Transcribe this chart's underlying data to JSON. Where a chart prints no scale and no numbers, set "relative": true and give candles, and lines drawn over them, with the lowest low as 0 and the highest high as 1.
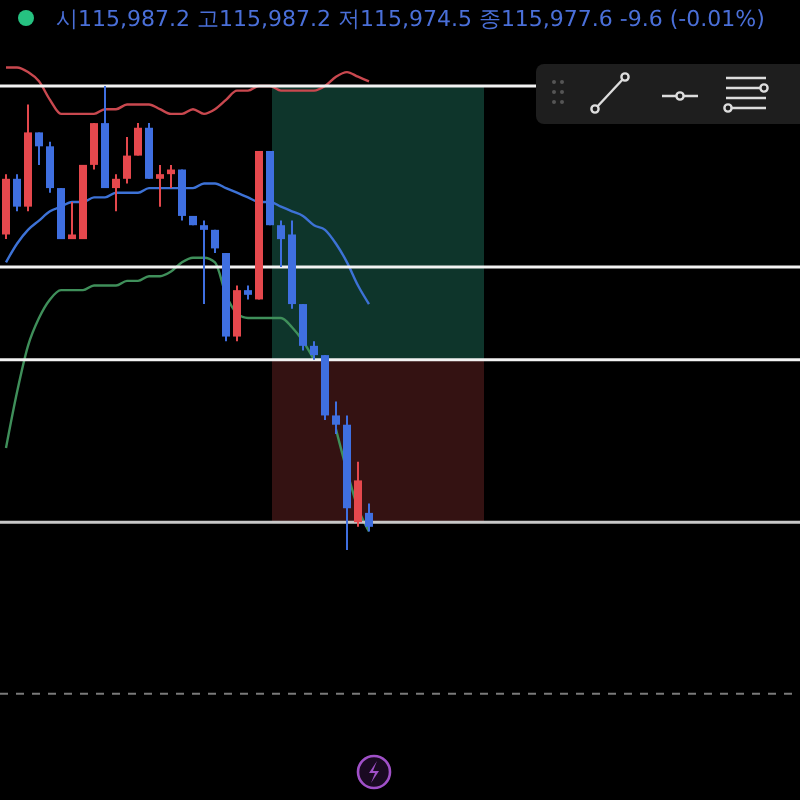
{
  "chart_data": {
    "type": "candlestick",
    "title": "시115,987.2 고115,987.2 저115,974.5 종115,977.6 -9.6 (-0.01%)",
    "categories": [
      null,
      null,
      null,
      null,
      null,
      null,
      null,
      null,
      null,
      null,
      null,
      null,
      null,
      null,
      null,
      null,
      null,
      null,
      null,
      null,
      null,
      null,
      null,
      null,
      null,
      null,
      null,
      null,
      null,
      null,
      null,
      null,
      null,
      null
    ],
    "ohlc": [
      [
        0.68,
        0.81,
        0.67,
        0.8
      ],
      [
        0.8,
        0.81,
        0.73,
        0.74
      ],
      [
        0.74,
        0.96,
        0.73,
        0.9
      ],
      [
        0.9,
        0.9,
        0.83,
        0.87
      ],
      [
        0.87,
        0.88,
        0.77,
        0.78
      ],
      [
        0.78,
        0.78,
        0.67,
        0.67
      ],
      [
        0.67,
        0.75,
        0.67,
        0.68
      ],
      [
        0.67,
        0.83,
        0.67,
        0.83
      ],
      [
        0.83,
        0.92,
        0.82,
        0.92
      ],
      [
        0.92,
        1.0,
        0.78,
        0.78
      ],
      [
        0.78,
        0.81,
        0.73,
        0.8
      ],
      [
        0.8,
        0.89,
        0.79,
        0.85
      ],
      [
        0.85,
        0.92,
        0.85,
        0.91
      ],
      [
        0.91,
        0.92,
        0.8,
        0.8
      ],
      [
        0.8,
        0.83,
        0.74,
        0.81
      ],
      [
        0.81,
        0.83,
        0.78,
        0.82
      ],
      [
        0.82,
        0.82,
        0.71,
        0.72
      ],
      [
        0.72,
        0.72,
        0.7,
        0.7
      ],
      [
        0.7,
        0.71,
        0.53,
        0.69
      ],
      [
        0.69,
        0.69,
        0.64,
        0.65
      ],
      [
        0.64,
        0.64,
        0.45,
        0.46
      ],
      [
        0.46,
        0.57,
        0.45,
        0.56
      ],
      [
        0.56,
        0.57,
        0.54,
        0.55
      ],
      [
        0.54,
        0.86,
        0.54,
        0.86
      ],
      [
        0.86,
        0.86,
        0.7,
        0.7
      ],
      [
        0.7,
        0.71,
        0.61,
        0.67
      ],
      [
        0.68,
        0.71,
        0.52,
        0.53
      ],
      [
        0.53,
        0.53,
        0.43,
        0.44
      ],
      [
        0.44,
        0.45,
        0.41,
        0.42
      ],
      [
        0.42,
        0.42,
        0.28,
        0.29
      ],
      [
        0.29,
        0.32,
        0.25,
        0.27
      ],
      [
        0.27,
        0.29,
        0.0,
        0.09
      ],
      [
        0.06,
        0.19,
        0.05,
        0.15
      ],
      [
        0.08,
        0.1,
        0.04,
        0.05
      ]
    ],
    "colors": [
      "#e5484d",
      "#3f6fe0",
      "#e5484d",
      "#3f6fe0",
      "#3f6fe0",
      "#3f6fe0",
      "#e5484d",
      "#e5484d",
      "#e5484d",
      "#3f6fe0",
      "#e5484d",
      "#e5484d",
      "#e5484d",
      "#3f6fe0",
      "#e5484d",
      "#e5484d",
      "#3f6fe0",
      "#3f6fe0",
      "#3f6fe0",
      "#3f6fe0",
      "#3f6fe0",
      "#e5484d",
      "#3f6fe0",
      "#e5484d",
      "#3f6fe0",
      "#3f6fe0",
      "#3f6fe0",
      "#3f6fe0",
      "#3f6fe0",
      "#3f6fe0",
      "#3f6fe0",
      "#3f6fe0",
      "#e5484d",
      "#3f6fe0"
    ],
    "series": [
      {
        "type": "line",
        "color": "#c9484f",
        "values": [
          1.04,
          1.04,
          1.03,
          1.01,
          0.97,
          0.94,
          0.94,
          0.94,
          0.94,
          0.95,
          0.95,
          0.96,
          0.96,
          0.96,
          0.95,
          0.94,
          0.94,
          0.95,
          0.94,
          0.95,
          0.97,
          0.99,
          0.99,
          1.0,
          1.0,
          0.99,
          0.99,
          0.99,
          0.99,
          1.0,
          1.02,
          1.03,
          1.02,
          1.01
        ]
      },
      {
        "type": "line",
        "color": "#3d72d6",
        "values": [
          0.62,
          0.66,
          0.69,
          0.71,
          0.73,
          0.74,
          0.75,
          0.75,
          0.76,
          0.76,
          0.77,
          0.77,
          0.77,
          0.78,
          0.78,
          0.78,
          0.78,
          0.78,
          0.79,
          0.79,
          0.78,
          0.77,
          0.76,
          0.75,
          0.75,
          0.74,
          0.73,
          0.72,
          0.7,
          0.69,
          0.66,
          0.62,
          0.57,
          0.53
        ]
      },
      {
        "type": "line",
        "color": "#3f8f5a",
        "values": [
          0.22,
          0.34,
          0.44,
          0.5,
          0.54,
          0.56,
          0.56,
          0.56,
          0.57,
          0.57,
          0.57,
          0.58,
          0.58,
          0.59,
          0.59,
          0.6,
          0.62,
          0.63,
          0.63,
          0.62,
          0.55,
          0.51,
          0.5,
          0.5,
          0.5,
          0.5,
          0.48,
          0.45,
          0.41,
          null,
          0.26,
          0.17,
          0.09,
          0.04
        ]
      }
    ],
    "ref_lines": [
      {
        "axis": "y",
        "value": 1.0,
        "color": "#f2f2f2"
      },
      {
        "axis": "y",
        "value": 0.61,
        "color": "#f2f2f2"
      },
      {
        "axis": "y",
        "value": 0.41,
        "color": "#f2f2f2"
      },
      {
        "axis": "y",
        "value": 0.06,
        "color": "#c8c8c8"
      },
      {
        "axis": "y",
        "value": -0.31,
        "color": "#7a7a7a",
        "line_style": "dashed"
      }
    ],
    "bands": [
      {
        "axis": "y",
        "from": 0.41,
        "to": 1.0,
        "color": "#0f3b30"
      },
      {
        "axis": "y",
        "from": 0.06,
        "to": 0.41,
        "color": "#3a1414"
      }
    ],
    "relative": true
  }
}
